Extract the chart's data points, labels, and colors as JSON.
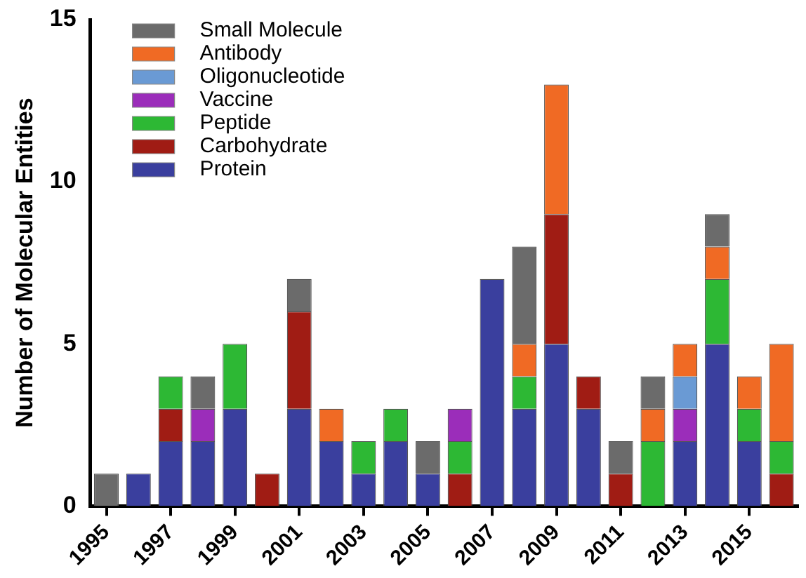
{
  "chart_data": {
    "type": "bar",
    "stacked": true,
    "ylabel": "Number of Molecular Entities",
    "categories": [
      "1995",
      null,
      "1997",
      null,
      "1999",
      null,
      "2001",
      null,
      "2003",
      null,
      "2005",
      null,
      "2007",
      null,
      "2009",
      null,
      "2011",
      null,
      "2013",
      null,
      "2015",
      null
    ],
    "series": [
      {
        "name": "Protein",
        "color": "#3a3f9e",
        "values": [
          0,
          1,
          2,
          2,
          3,
          0,
          3,
          2,
          1,
          2,
          1,
          0,
          7,
          3,
          5,
          3,
          0,
          0,
          2,
          5,
          2,
          0
        ]
      },
      {
        "name": "Carbohydrate",
        "color": "#a01c14",
        "values": [
          0,
          0,
          1,
          0,
          0,
          1,
          3,
          0,
          0,
          0,
          0,
          1,
          0,
          0,
          4,
          1,
          1,
          0,
          0,
          0,
          0,
          1
        ]
      },
      {
        "name": "Peptide",
        "color": "#2db834",
        "values": [
          0,
          0,
          1,
          0,
          2,
          0,
          0,
          0,
          1,
          1,
          0,
          1,
          0,
          1,
          0,
          0,
          0,
          2,
          0,
          2,
          1,
          1
        ]
      },
      {
        "name": "Vaccine",
        "color": "#9b2dba",
        "values": [
          0,
          0,
          0,
          1,
          0,
          0,
          0,
          0,
          0,
          0,
          0,
          1,
          0,
          0,
          0,
          0,
          0,
          0,
          1,
          0,
          0,
          0
        ]
      },
      {
        "name": "Oligonucleotide",
        "color": "#6a9ad4",
        "values": [
          0,
          0,
          0,
          0,
          0,
          0,
          0,
          0,
          0,
          0,
          0,
          0,
          0,
          0,
          0,
          0,
          0,
          0,
          1,
          0,
          0,
          0
        ]
      },
      {
        "name": "Antibody",
        "color": "#f06a24",
        "values": [
          0,
          0,
          0,
          0,
          0,
          0,
          0,
          1,
          0,
          0,
          0,
          0,
          0,
          1,
          4,
          0,
          0,
          1,
          1,
          1,
          1,
          3
        ]
      },
      {
        "name": "Small Molecule",
        "color": "#6b6b6b",
        "values": [
          1,
          0,
          0,
          1,
          0,
          0,
          1,
          0,
          0,
          0,
          1,
          0,
          0,
          3,
          0,
          0,
          1,
          1,
          0,
          1,
          0,
          0
        ]
      }
    ],
    "ylim": [
      0,
      15
    ],
    "yticks": [
      0,
      5,
      10,
      15
    ],
    "grid": false,
    "legend": "top left"
  }
}
